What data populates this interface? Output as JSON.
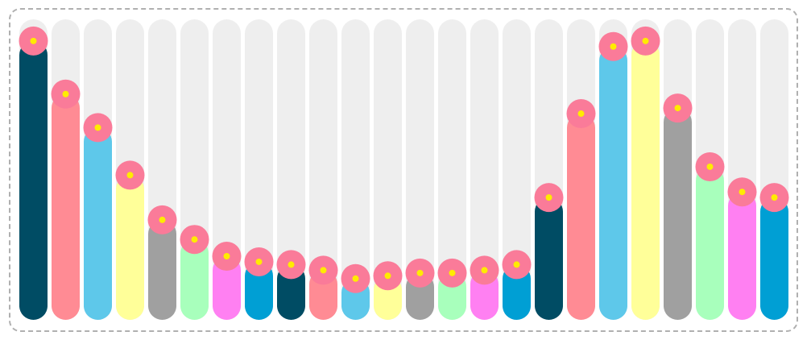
{
  "chart_data": {
    "type": "bar",
    "style": "rounded-lollipop-bars",
    "ylim": [
      0,
      100
    ],
    "values": [
      94,
      75,
      63,
      46,
      30,
      23,
      17,
      15,
      14,
      12,
      9,
      10,
      11,
      11,
      12,
      14,
      38,
      68,
      92,
      94,
      70,
      49,
      40,
      38
    ],
    "colors": [
      "#004c64",
      "#ff8b94",
      "#5ec8ea",
      "#ffff99",
      "#a0a0a0",
      "#a8ffbc",
      "#ff80f2",
      "#009fd4",
      "#004c64",
      "#ff8b94",
      "#5ec8ea",
      "#ffff99",
      "#a0a0a0",
      "#a8ffbc",
      "#ff80f2",
      "#009fd4",
      "#004c64",
      "#ff8b94",
      "#5ec8ea",
      "#ffff99",
      "#a0a0a0",
      "#a8ffbc",
      "#ff80f2",
      "#009fd4"
    ],
    "track_color": "#eeeeee",
    "marker_color": "#fa7b99",
    "marker_dot_color": "#ffeb00",
    "grid": false,
    "legend": "none"
  }
}
